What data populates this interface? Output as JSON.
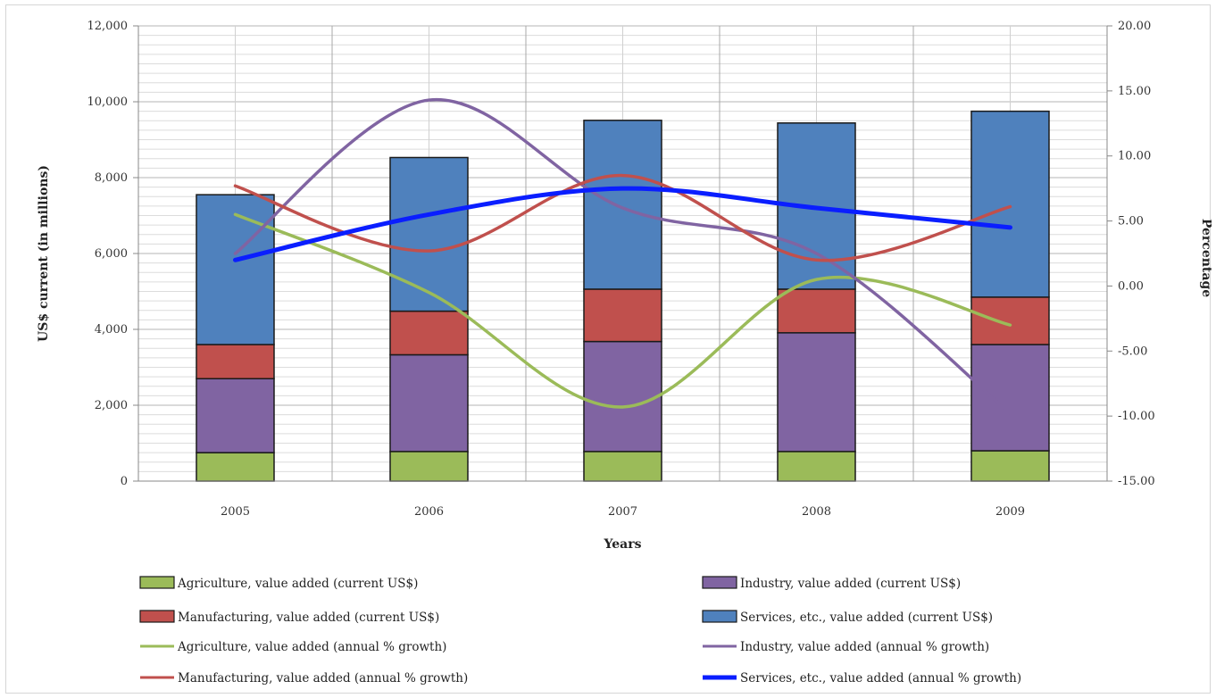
{
  "chart_data": {
    "type": "bar",
    "stacked": true,
    "categories": [
      "2005",
      "2006",
      "2007",
      "2008",
      "2009"
    ],
    "xlabel": "Years",
    "ylabel": "US$ current (in millions)",
    "y2label": "Percentage",
    "ylim": [
      0,
      12000
    ],
    "y2lim": [
      -15,
      20
    ],
    "yticks": [
      "0",
      "2,000",
      "4,000",
      "6,000",
      "8,000",
      "10,000",
      "12,000"
    ],
    "y2ticks": [
      "-15.00",
      "-10.00",
      "-5.00",
      "0.00",
      "5.00",
      "10.00",
      "15.00",
      "20.00"
    ],
    "grid": true,
    "legend_position": "bottom",
    "bar_series": [
      {
        "name": "Agriculture, value added (current US$)",
        "color": "#9BBB59",
        "values": [
          750,
          780,
          780,
          780,
          800
        ]
      },
      {
        "name": "Industry, value added (current US$)",
        "color": "#8064A2",
        "values": [
          1950,
          2550,
          2900,
          3130,
          2800
        ]
      },
      {
        "name": "Manufacturing, value added (current US$)",
        "color": "#C0504D",
        "values": [
          900,
          1150,
          1380,
          1150,
          1250
        ]
      },
      {
        "name": "Services, etc., value added (current US$)",
        "color": "#4F81BD",
        "values": [
          3950,
          4050,
          4450,
          4380,
          4900
        ]
      }
    ],
    "line_series": [
      {
        "name": "Agriculture, value added (annual % growth)",
        "color": "#9BBB59",
        "values": [
          5.5,
          -0.5,
          -9.3,
          0.5,
          -3.0
        ]
      },
      {
        "name": "Industry, value added (annual % growth)",
        "color": "#8064A2",
        "values": [
          2.5,
          14.3,
          6.0,
          2.5,
          -9.8
        ]
      },
      {
        "name": "Manufacturing, value added (annual % growth)",
        "color": "#C0504D",
        "values": [
          7.7,
          2.7,
          8.5,
          2.0,
          6.1
        ]
      },
      {
        "name": "Services, etc., value added (annual % growth)",
        "color": "#0A1EFF",
        "values": [
          2.0,
          5.5,
          7.5,
          6.0,
          4.5
        ]
      }
    ]
  }
}
